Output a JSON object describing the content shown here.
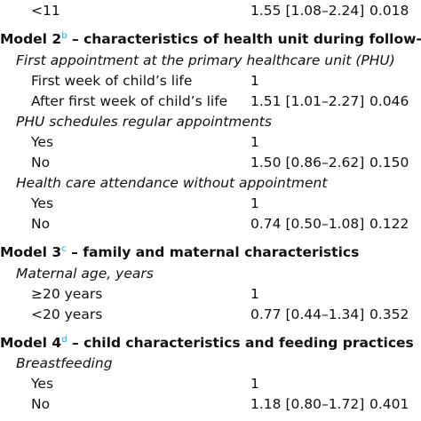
{
  "table": {
    "rows": [
      {
        "label": "<11",
        "or": "1.55 [1.08–2.24]",
        "p": "0.018"
      },
      {
        "heading": "Model 2",
        "note": "b",
        "title": " – characteristics of health unit during follow-up"
      },
      {
        "variable": "First appointment at the primary healthcare unit (PHU)"
      },
      {
        "label": "First week of child’s life",
        "or": "1"
      },
      {
        "label": "After first week of child’s life",
        "or": "1.51 [1.01–2.27]",
        "p": "0.046"
      },
      {
        "variable": "PHU schedules regular appointments"
      },
      {
        "label": "Yes",
        "or": "1"
      },
      {
        "label": "No",
        "or": "1.50 [0.86–2.62]",
        "p": "0.150"
      },
      {
        "variable": "Health care attendance without appointment"
      },
      {
        "label": "Yes",
        "or": "1"
      },
      {
        "label": "No",
        "or": "0.74 [0.50–1.08]",
        "p": "0.122"
      },
      {
        "heading": "Model 3",
        "note": "c",
        "title": " – family and maternal characteristics"
      },
      {
        "variable": "Maternal age, years"
      },
      {
        "label": "≥20 years",
        "or": "1"
      },
      {
        "label": "<20 years",
        "or": "0.77 [0.44–1.34]",
        "p": "0.352"
      },
      {
        "heading": "Model 4",
        "note": "d",
        "title": " – child characteristics and feeding practices"
      },
      {
        "variable": "Breastfeeding"
      },
      {
        "label": "Yes",
        "or": "1"
      },
      {
        "label": "No",
        "or": "1.18 [0.80–1.72]",
        "p": "0.401"
      }
    ]
  }
}
